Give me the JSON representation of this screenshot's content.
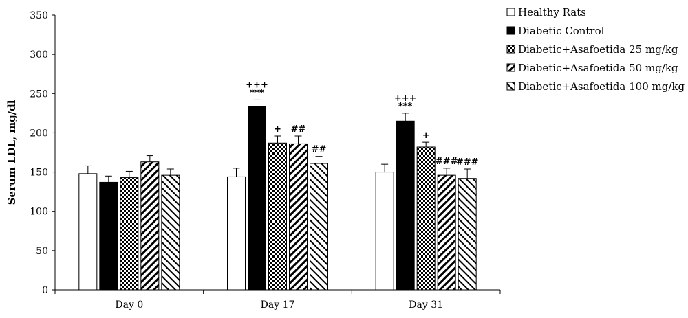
{
  "chart_data": {
    "type": "bar",
    "ylabel": "Serum LDL, mg/dl",
    "ylim": [
      0,
      350
    ],
    "yticks": [
      0,
      50,
      100,
      150,
      200,
      250,
      300,
      350
    ],
    "grid": false,
    "legend_position": "top-right",
    "categories": [
      "Day 0",
      "Day 17",
      "Day 31"
    ],
    "series": [
      {
        "name": "Healthy Rats",
        "pattern": "white",
        "values": [
          148,
          144,
          150
        ],
        "errors": [
          10,
          11,
          10
        ],
        "annotations": [
          [],
          [],
          []
        ]
      },
      {
        "name": "Diabetic Control",
        "pattern": "black",
        "values": [
          137,
          234,
          215
        ],
        "errors": [
          8,
          8,
          10
        ],
        "annotations": [
          [],
          [
            "+++",
            "***"
          ],
          [
            "+++",
            "***"
          ]
        ]
      },
      {
        "name": "Diabetic+Asafoetida 25 mg/kg",
        "pattern": "checker",
        "values": [
          143,
          187,
          182
        ],
        "errors": [
          8,
          9,
          6
        ],
        "annotations": [
          [],
          [
            "+"
          ],
          [
            "+"
          ]
        ]
      },
      {
        "name": "Diabetic+Asafoetida 50 mg/kg",
        "pattern": "diag-right",
        "values": [
          163,
          186,
          146
        ],
        "errors": [
          8,
          10,
          9
        ],
        "annotations": [
          [],
          [
            "##"
          ],
          [
            "###"
          ]
        ]
      },
      {
        "name": "Diabetic+Asafoetida 100 mg/kg",
        "pattern": "diag-left",
        "values": [
          146,
          161,
          142
        ],
        "errors": [
          8,
          9,
          12
        ],
        "annotations": [
          [],
          [
            "##"
          ],
          [
            "###"
          ]
        ]
      }
    ]
  }
}
